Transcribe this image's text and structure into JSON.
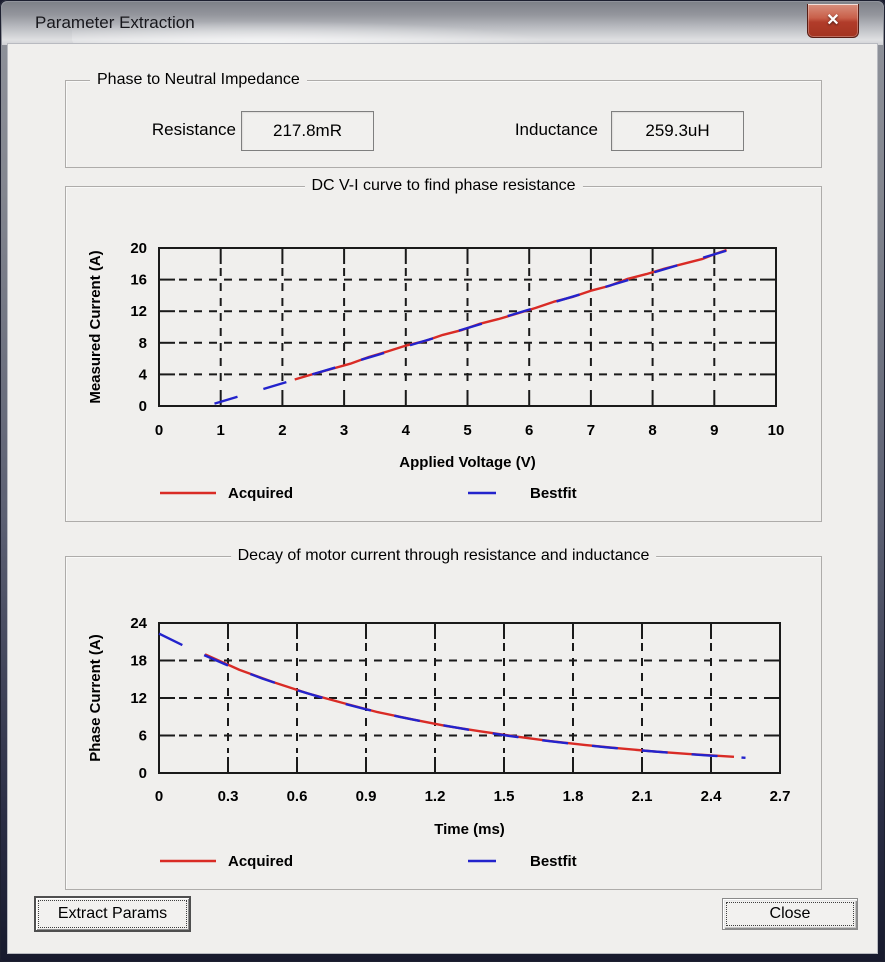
{
  "window": {
    "title": "Parameter Extraction",
    "close_glyph": "✕"
  },
  "impedance": {
    "group_title": "Phase to Neutral Impedance",
    "resistance_label": "Resistance",
    "resistance_value": "217.8mR",
    "inductance_label": "Inductance",
    "inductance_value": "259.3uH"
  },
  "buttons": {
    "extract": "Extract Params",
    "close": "Close"
  },
  "colors": {
    "acquired": "#d92b25",
    "bestfit": "#2323cc",
    "grid": "#1a1a1a",
    "background": "#f0efed"
  },
  "chart_data": [
    {
      "type": "line",
      "title": "DC V-I curve to find phase resistance",
      "xlabel": "Applied Voltage (V)",
      "ylabel": "Measured Current (A)",
      "xlim": [
        0,
        10
      ],
      "ylim": [
        0,
        20
      ],
      "xticks": [
        "0",
        "1",
        "2",
        "3",
        "4",
        "5",
        "6",
        "7",
        "8",
        "9",
        "10"
      ],
      "yticks": [
        "0",
        "4",
        "8",
        "12",
        "16",
        "20"
      ],
      "grid": "dashed",
      "legend_position": "bottom",
      "series": [
        {
          "name": "Acquired",
          "color": "#d92b25",
          "style": "solid",
          "points": [
            [
              2.2,
              3.35
            ],
            [
              2.5,
              4.05
            ],
            [
              2.8,
              4.7
            ],
            [
              3.1,
              5.35
            ],
            [
              3.4,
              6.2
            ],
            [
              3.7,
              6.9
            ],
            [
              4.0,
              7.65
            ],
            [
              4.3,
              8.2
            ],
            [
              4.6,
              9.0
            ],
            [
              4.9,
              9.6
            ],
            [
              5.2,
              10.4
            ],
            [
              5.5,
              11.0
            ],
            [
              5.8,
              11.7
            ],
            [
              6.1,
              12.4
            ],
            [
              6.4,
              13.2
            ],
            [
              6.7,
              13.8
            ],
            [
              7.0,
              14.6
            ],
            [
              7.3,
              15.2
            ],
            [
              7.6,
              16.1
            ],
            [
              7.9,
              16.7
            ],
            [
              8.2,
              17.4
            ],
            [
              8.5,
              18.0
            ],
            [
              8.8,
              18.6
            ],
            [
              9.0,
              19.2
            ],
            [
              9.2,
              19.75
            ]
          ]
        },
        {
          "name": "Bestfit",
          "color": "#2323cc",
          "style": "dashed",
          "points": [
            [
              0.9,
              0.3
            ],
            [
              9.3,
              19.9
            ]
          ]
        }
      ]
    },
    {
      "type": "line",
      "title": "Decay of motor current through resistance and inductance",
      "xlabel": "Time (ms)",
      "ylabel": "Phase Current (A)",
      "xlim": [
        0,
        2.7
      ],
      "ylim": [
        0,
        24
      ],
      "xticks": [
        "0",
        "0.3",
        "0.6",
        "0.9",
        "1.2",
        "1.5",
        "1.8",
        "2.1",
        "2.4",
        "2.7"
      ],
      "yticks": [
        "0",
        "6",
        "12",
        "18",
        "24"
      ],
      "grid": "dashed",
      "legend_position": "bottom",
      "series": [
        {
          "name": "Acquired",
          "color": "#d92b25",
          "style": "solid",
          "points": [
            [
              0.2,
              19.0
            ],
            [
              0.35,
              16.5
            ],
            [
              0.5,
              14.5
            ],
            [
              0.65,
              12.7
            ],
            [
              0.8,
              11.2
            ],
            [
              0.95,
              9.75
            ],
            [
              1.1,
              8.6
            ],
            [
              1.25,
              7.5
            ],
            [
              1.4,
              6.65
            ],
            [
              1.55,
              5.85
            ],
            [
              1.7,
              5.1
            ],
            [
              1.85,
              4.5
            ],
            [
              2.0,
              3.95
            ],
            [
              2.15,
              3.45
            ],
            [
              2.3,
              3.05
            ],
            [
              2.5,
              2.6
            ]
          ]
        },
        {
          "name": "Bestfit",
          "color": "#2323cc",
          "style": "dashed",
          "points": [
            [
              0,
              22.3
            ],
            [
              0.15,
              19.6
            ],
            [
              0.3,
              17.2
            ],
            [
              0.45,
              15.1
            ],
            [
              0.6,
              13.25
            ],
            [
              0.75,
              11.6
            ],
            [
              0.9,
              10.2
            ],
            [
              1.05,
              8.95
            ],
            [
              1.2,
              7.85
            ],
            [
              1.35,
              6.9
            ],
            [
              1.5,
              6.05
            ],
            [
              1.65,
              5.3
            ],
            [
              1.8,
              4.65
            ],
            [
              1.95,
              4.1
            ],
            [
              2.1,
              3.6
            ],
            [
              2.25,
              3.15
            ],
            [
              2.4,
              2.77
            ],
            [
              2.55,
              2.43
            ]
          ]
        }
      ]
    }
  ]
}
